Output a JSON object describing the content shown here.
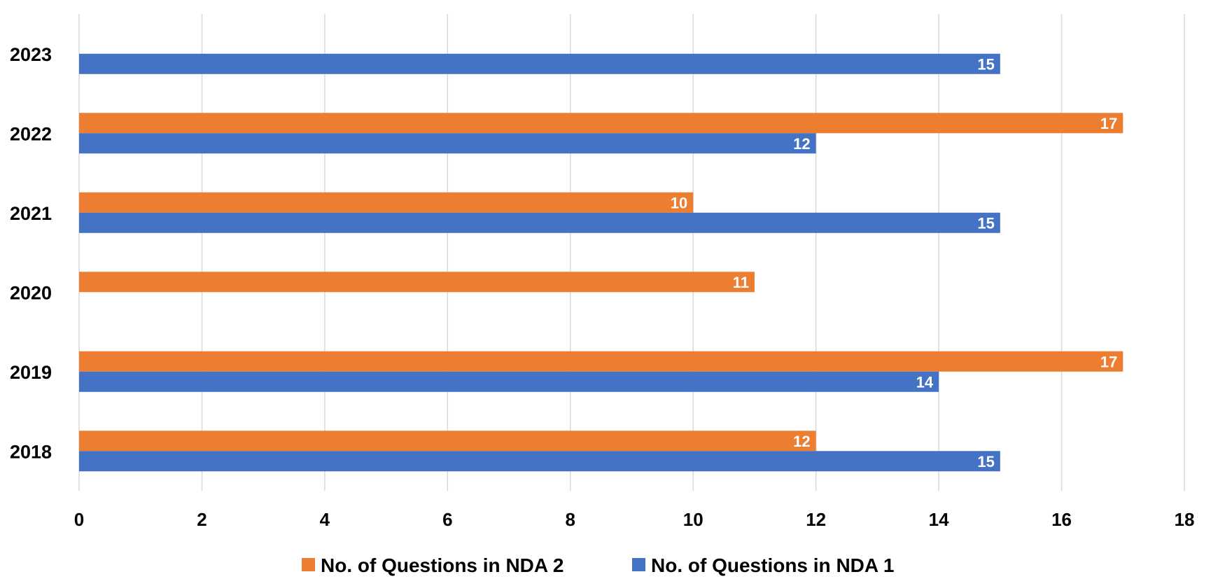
{
  "chart_data": {
    "type": "bar",
    "orientation": "horizontal",
    "categories": [
      "2018",
      "2019",
      "2020",
      "2021",
      "2022",
      "2023"
    ],
    "series": [
      {
        "name": "No. of Questions in NDA 2",
        "color": "#ED7D31",
        "values": [
          12,
          17,
          11,
          10,
          17,
          null
        ]
      },
      {
        "name": "No. of Questions in NDA 1",
        "color": "#4472C4",
        "values": [
          15,
          14,
          null,
          15,
          12,
          15
        ]
      }
    ],
    "xlim": [
      0,
      18
    ],
    "xticks": [
      "0",
      "2",
      "4",
      "6",
      "8",
      "10",
      "12",
      "14",
      "16",
      "18"
    ],
    "grid": true,
    "data_labels": true,
    "legend_position": "bottom"
  }
}
